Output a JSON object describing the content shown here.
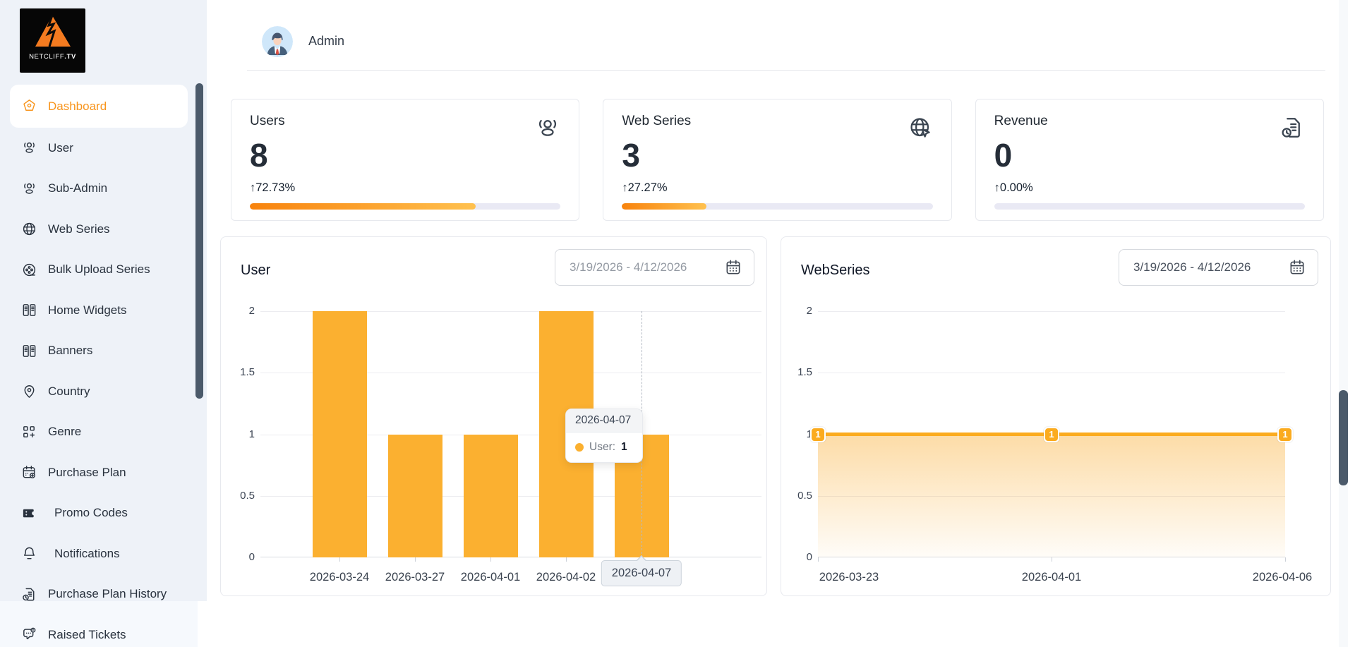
{
  "brand": {
    "name": "NETCLIFF.TV",
    "logo_text": "NETCLIFF",
    "logo_tld": ".TV"
  },
  "header": {
    "user_name": "Admin",
    "avatar_icon": "admin-avatar-icon"
  },
  "sidebar": {
    "items": [
      {
        "label": "Dashboard",
        "icon": "dashboard-icon",
        "active": true
      },
      {
        "label": "User",
        "icon": "users-icon",
        "active": false
      },
      {
        "label": "Sub-Admin",
        "icon": "users-icon",
        "active": false
      },
      {
        "label": "Web Series",
        "icon": "globe-icon",
        "active": false
      },
      {
        "label": "Bulk Upload Series",
        "icon": "film-reel-icon",
        "active": false
      },
      {
        "label": "Home Widgets",
        "icon": "widgets-icon",
        "active": false
      },
      {
        "label": "Banners",
        "icon": "widgets-icon",
        "active": false
      },
      {
        "label": "Country",
        "icon": "map-pin-icon",
        "active": false
      },
      {
        "label": "Genre",
        "icon": "grid-plus-icon",
        "active": false
      },
      {
        "label": "Purchase Plan",
        "icon": "calendar-plus-icon",
        "active": false
      },
      {
        "label": "Promo Codes",
        "icon": "ticket-icon",
        "active": false
      },
      {
        "label": "Notifications",
        "icon": "bell-icon",
        "active": false
      },
      {
        "label": "Purchase Plan History",
        "icon": "document-clock-icon",
        "active": false
      },
      {
        "label": "Raised Tickets",
        "icon": "chat-alert-icon",
        "active": false
      }
    ]
  },
  "stats": [
    {
      "label": "Users",
      "value": "8",
      "arrow": "↑",
      "change": "72.73%",
      "progress_pct": 72.73,
      "icon": "users-group-icon"
    },
    {
      "label": "Web Series",
      "value": "3",
      "arrow": "↑",
      "change": "27.27%",
      "progress_pct": 27.27,
      "icon": "globe-pointer-icon"
    },
    {
      "label": "Revenue",
      "value": "0",
      "arrow": "↑",
      "change": "0.00%",
      "progress_pct": 0,
      "icon": "invoice-clock-icon"
    }
  ],
  "charts": [
    {
      "type": "bar",
      "title": "User",
      "date_range": "3/19/2026 - 4/12/2026",
      "calendar_icon": "calendar-icon",
      "ymax": 2,
      "ytick_labels": [
        "2",
        "1.5",
        "1",
        "0.5",
        "0"
      ],
      "categories": [
        "2026-03-24",
        "2026-03-27",
        "2026-04-01",
        "2026-04-02",
        "2026-04-07"
      ],
      "values": [
        2,
        1,
        1,
        2,
        1
      ],
      "tooltip": {
        "date": "2026-04-07",
        "series_label": "User:",
        "value": "1"
      },
      "crosshair_label": "2026-04-07"
    },
    {
      "type": "area",
      "title": "WebSeries",
      "date_range": "3/19/2026 - 4/12/2026",
      "calendar_icon": "calendar-icon",
      "ymax": 2,
      "ytick_labels": [
        "2",
        "1.5",
        "1",
        "0.5",
        "0"
      ],
      "x_labels": [
        "2026-03-23",
        "2026-04-01",
        "2026-04-06"
      ],
      "values": [
        1,
        1,
        1
      ],
      "point_labels": [
        "1",
        "1",
        "1"
      ]
    }
  ],
  "colors": {
    "accent_orange": "#f8951d",
    "bar_fill": "#fbb030",
    "line_fill": "#fbab1f",
    "progress_gradient_start": "#f8830d",
    "progress_gradient_end": "#ffc14f",
    "progress_track": "#e9e9f4",
    "sidebar_bg": "#eef2f8",
    "scrollbar_thumb": "#4b5a6a",
    "card_border": "#e7e9ee",
    "logo_bg": "#060606",
    "logo_mountain": "#f47b20"
  }
}
